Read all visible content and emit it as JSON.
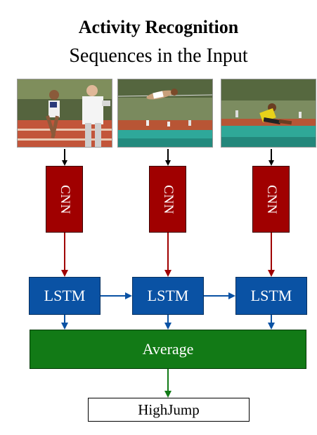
{
  "title": "Activity Recognition",
  "subtitle": "Sequences in the Input",
  "frames": [
    {
      "icon": "sprinter-photo"
    },
    {
      "icon": "high-jumper-over-bar-photo"
    },
    {
      "icon": "high-jumper-landing-photo"
    }
  ],
  "cnn_label": "CNN",
  "lstm_label": "LSTM",
  "average_label": "Average",
  "output_label": "HighJump",
  "colors": {
    "cnn": "#a00000",
    "lstm": "#0a52a4",
    "average": "#127a16",
    "arrow_input": "#000000",
    "arrow_cnn": "#a00000",
    "arrow_lstm": "#0a52a4",
    "arrow_average": "#127a16"
  }
}
